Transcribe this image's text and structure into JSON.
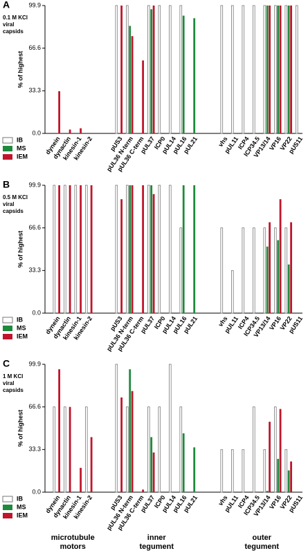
{
  "chart_data": [
    {
      "type": "bar",
      "panel": "A",
      "annotation": [
        "0.1 M KCl",
        "viral",
        "capsids"
      ],
      "y_label": "% of highest",
      "categories": [
        "dynein",
        "dynactin",
        "kinesin-1",
        "kinesin-2",
        "pUS3",
        "pUL36 N-term",
        "pUL36 C-term",
        "pUL37",
        "ICP0",
        "pUL14",
        "pUL16",
        "pUL21",
        "vhs",
        "pUL11",
        "ICP4",
        "ICP34.5",
        "VP13/14",
        "VP16",
        "VP22",
        "pUS11"
      ],
      "ylim": [
        0,
        99.9
      ],
      "yticks": [
        {
          "value": 0,
          "label": "0.0"
        },
        33.3,
        66.6,
        99.9
      ],
      "series": [
        {
          "name": "IB",
          "color": "#ffffff",
          "values": [
            0,
            0,
            0,
            0,
            99.9,
            99.9,
            0,
            99.9,
            99.9,
            99.9,
            99.9,
            0,
            99.9,
            99.9,
            99.9,
            99.9,
            99.9,
            99.9,
            99.9,
            99.9
          ]
        },
        {
          "name": "MS",
          "color": "#1e8a3c",
          "values": [
            0,
            0,
            0,
            0,
            0,
            84,
            0,
            97,
            0,
            0,
            92,
            90,
            0,
            0,
            0,
            0,
            99.9,
            99.9,
            99.9,
            0
          ]
        },
        {
          "name": "IEM",
          "color": "#c0152b",
          "values": [
            33,
            3,
            4,
            0,
            99.9,
            76,
            57,
            99.9,
            0,
            0,
            0,
            0,
            0,
            0,
            0,
            0,
            99.9,
            99.9,
            99.9,
            0
          ]
        }
      ]
    },
    {
      "type": "bar",
      "panel": "B",
      "annotation": [
        "0.5 M KCl",
        "viral",
        "capsids"
      ],
      "y_label": "% of highest",
      "categories": [
        "dynein",
        "dynactin",
        "kinesin-1",
        "kinesin-2",
        "pUS3",
        "pUL36 N-term",
        "pUL36 C-term",
        "pUL37",
        "ICP0",
        "pUL14",
        "pUL16",
        "pUL21",
        "vhs",
        "pUL11",
        "ICP4",
        "ICP34.5",
        "VP13/14",
        "VP16",
        "VP22",
        "pUS11"
      ],
      "ylim": [
        0,
        99.9
      ],
      "yticks": [
        {
          "value": 0,
          "label": "0.0"
        },
        33.3,
        66.6,
        99.9
      ],
      "series": [
        {
          "name": "IB",
          "color": "#ffffff",
          "values": [
            99.9,
            99.9,
            99.9,
            99.9,
            99.9,
            99.9,
            0,
            99.9,
            99.9,
            99.9,
            66.6,
            0,
            66.6,
            33.3,
            66.6,
            66.6,
            66.6,
            66.6,
            66.6,
            0
          ]
        },
        {
          "name": "MS",
          "color": "#1e8a3c",
          "values": [
            0,
            0,
            0,
            0,
            0,
            99.9,
            0,
            99.9,
            0,
            0,
            99.9,
            99.9,
            0,
            0,
            0,
            0,
            52,
            57,
            38,
            0
          ]
        },
        {
          "name": "IEM",
          "color": "#c0152b",
          "values": [
            99.9,
            99.9,
            99.9,
            99.9,
            89,
            99.9,
            99.9,
            93,
            0,
            0,
            0,
            0,
            0,
            0,
            0,
            0,
            71,
            89,
            71,
            0
          ]
        }
      ]
    },
    {
      "type": "bar",
      "panel": "C",
      "annotation": [
        "1 M KCl",
        "viral",
        "capsids"
      ],
      "y_label": "% of highest",
      "categories": [
        "dynein",
        "dynactin",
        "kinesin-1",
        "kinesin-2",
        "pUS3",
        "pUL36 N-term",
        "pUL36 C-term",
        "pUL37",
        "ICP0",
        "pUL14",
        "pUL16",
        "pUL21",
        "vhs",
        "pUL11",
        "ICP4",
        "ICP34.5",
        "VP13/14",
        "VP16",
        "VP22",
        "pUS11"
      ],
      "ylim": [
        0,
        99.9
      ],
      "yticks": [
        {
          "value": 0,
          "label": "0.0"
        },
        33.3,
        66.6,
        99.9
      ],
      "series": [
        {
          "name": "IB",
          "color": "#ffffff",
          "values": [
            66.6,
            66.6,
            0,
            66.6,
            99.9,
            66.6,
            0,
            66.6,
            66.6,
            99.9,
            66.6,
            0,
            33.3,
            33.3,
            33.3,
            66.6,
            33.3,
            66.6,
            33.3,
            0
          ]
        },
        {
          "name": "MS",
          "color": "#1e8a3c",
          "values": [
            0,
            0,
            0,
            0,
            0,
            96,
            0,
            43,
            0,
            0,
            46,
            35,
            0,
            0,
            0,
            0,
            1,
            26,
            17,
            0
          ]
        },
        {
          "name": "IEM",
          "color": "#c0152b",
          "values": [
            96,
            66.6,
            19,
            43,
            74,
            79,
            2,
            31,
            0,
            0,
            0,
            0,
            0,
            0,
            0,
            0,
            55,
            65,
            24,
            0
          ]
        }
      ]
    }
  ],
  "group_labels": [
    [
      "microtubule",
      "motors"
    ],
    [
      "inner",
      "tegument"
    ],
    [
      "outer",
      "tegument"
    ]
  ]
}
